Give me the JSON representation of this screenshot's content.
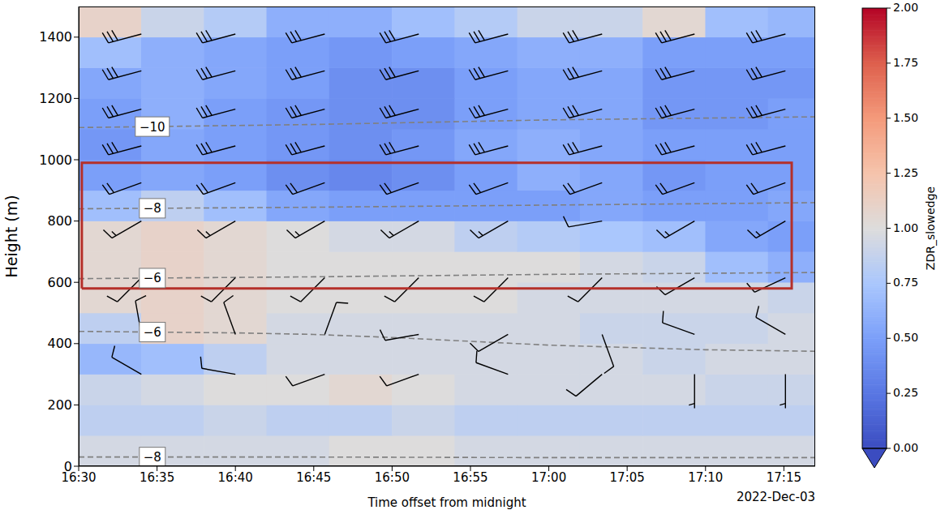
{
  "chart_data": {
    "type": "heatmap",
    "x_label": "Time offset from midnight",
    "y_label": "Height (m)",
    "annotation": "2022-Dec-03",
    "xlim": [
      990,
      1037
    ],
    "xticks": [
      {
        "value": 990,
        "label": "16:30"
      },
      {
        "value": 995,
        "label": "16:35"
      },
      {
        "value": 1000,
        "label": "16:40"
      },
      {
        "value": 1005,
        "label": "16:45"
      },
      {
        "value": 1010,
        "label": "16:50"
      },
      {
        "value": 1015,
        "label": "16:55"
      },
      {
        "value": 1020,
        "label": "17:00"
      },
      {
        "value": 1025,
        "label": "17:05"
      },
      {
        "value": 1030,
        "label": "17:10"
      },
      {
        "value": 1035,
        "label": "17:15"
      }
    ],
    "ylim": [
      0,
      1500
    ],
    "yticks": [
      0,
      200,
      400,
      600,
      800,
      1000,
      1200,
      1400
    ],
    "cells": {
      "x_edges": [
        990,
        994,
        998,
        1002,
        1006,
        1010,
        1014,
        1018,
        1022,
        1026,
        1030,
        1034,
        1037
      ],
      "y_edges": [
        0,
        100,
        200,
        300,
        400,
        500,
        600,
        700,
        800,
        900,
        1000,
        1100,
        1200,
        1300,
        1400,
        1500
      ],
      "values": [
        [
          0.95,
          0.95,
          0.95,
          0.95,
          1.0,
          1.0,
          0.95,
          0.95,
          0.95,
          0.95,
          0.95,
          0.95
        ],
        [
          0.85,
          0.85,
          0.9,
          0.85,
          0.85,
          0.9,
          0.85,
          0.85,
          0.85,
          0.85,
          0.85,
          0.85
        ],
        [
          0.9,
          0.95,
          1.0,
          1.0,
          1.05,
          1.0,
          0.95,
          0.95,
          0.95,
          0.95,
          0.9,
          0.9
        ],
        [
          0.65,
          0.7,
          0.85,
          0.95,
          0.95,
          0.95,
          0.95,
          0.95,
          0.95,
          0.9,
          0.95,
          0.95
        ],
        [
          0.85,
          1.1,
          1.05,
          0.95,
          0.95,
          0.95,
          0.95,
          0.95,
          0.9,
          0.9,
          0.9,
          0.95
        ],
        [
          1.05,
          1.1,
          1.05,
          1.0,
          1.0,
          1.0,
          1.0,
          0.95,
          0.95,
          0.95,
          0.95,
          0.9
        ],
        [
          1.05,
          1.1,
          1.05,
          1.0,
          1.0,
          1.0,
          1.0,
          1.0,
          0.95,
          0.9,
          0.7,
          0.6
        ],
        [
          1.05,
          1.1,
          1.05,
          1.0,
          0.95,
          0.95,
          0.85,
          0.8,
          0.75,
          0.7,
          0.55,
          0.5
        ],
        [
          0.7,
          0.85,
          0.7,
          0.55,
          0.5,
          0.5,
          0.5,
          0.5,
          0.55,
          0.5,
          0.5,
          0.55
        ],
        [
          0.5,
          0.55,
          0.5,
          0.4,
          0.35,
          0.4,
          0.5,
          0.6,
          0.55,
          0.45,
          0.5,
          0.5
        ],
        [
          0.45,
          0.55,
          0.5,
          0.45,
          0.4,
          0.45,
          0.55,
          0.6,
          0.55,
          0.5,
          0.5,
          0.5
        ],
        [
          0.5,
          0.6,
          0.5,
          0.45,
          0.4,
          0.4,
          0.5,
          0.55,
          0.55,
          0.45,
          0.45,
          0.5
        ],
        [
          0.55,
          0.6,
          0.55,
          0.5,
          0.4,
          0.4,
          0.5,
          0.55,
          0.55,
          0.45,
          0.45,
          0.45
        ],
        [
          0.7,
          0.6,
          0.55,
          0.5,
          0.45,
          0.5,
          0.55,
          0.6,
          0.6,
          0.5,
          0.5,
          0.5
        ],
        [
          1.1,
          0.9,
          0.8,
          0.6,
          0.6,
          0.7,
          0.8,
          0.9,
          0.9,
          1.05,
          0.7,
          0.65
        ]
      ]
    },
    "colorbar": {
      "label": "ZDR_slowedge",
      "range": [
        0,
        2
      ],
      "ticks": [
        {
          "value": 0,
          "label": "0.00"
        },
        {
          "value": 0.25,
          "label": "0.25"
        },
        {
          "value": 0.5,
          "label": "0.50"
        },
        {
          "value": 0.75,
          "label": "0.75"
        },
        {
          "value": 1,
          "label": "1.00"
        },
        {
          "value": 1.25,
          "label": "1.25"
        },
        {
          "value": 1.5,
          "label": "1.50"
        },
        {
          "value": 1.75,
          "label": "1.75"
        },
        {
          "value": 2,
          "label": "2.00"
        }
      ]
    },
    "contours": [
      {
        "label": "−10",
        "x": [
          990,
          1005,
          1020,
          1037
        ],
        "y": [
          1105,
          1115,
          1130,
          1140
        ]
      },
      {
        "label": "−8",
        "x": [
          990,
          1005,
          1020,
          1037
        ],
        "y": [
          840,
          845,
          852,
          860
        ]
      },
      {
        "label": "−6",
        "x": [
          990,
          1005,
          1020,
          1037
        ],
        "y": [
          612,
          618,
          626,
          632
        ]
      },
      {
        "label": "−6",
        "x": [
          990,
          1000,
          1005,
          1010,
          1020,
          1030,
          1037
        ],
        "y": [
          440,
          435,
          430,
          420,
          395,
          380,
          375
        ]
      },
      {
        "label": "−8",
        "x": [
          990,
          1005,
          1020,
          1037
        ],
        "y": [
          30,
          30,
          28,
          28
        ]
      }
    ],
    "wind_barbs": [
      {
        "x": 994.0,
        "y": 1410,
        "speed": 30,
        "direction": 255
      },
      {
        "x": 1000.0,
        "y": 1410,
        "speed": 30,
        "direction": 255
      },
      {
        "x": 1005.7,
        "y": 1410,
        "speed": 30,
        "direction": 255
      },
      {
        "x": 1011.7,
        "y": 1410,
        "speed": 30,
        "direction": 255
      },
      {
        "x": 1017.4,
        "y": 1410,
        "speed": 30,
        "direction": 255
      },
      {
        "x": 1023.4,
        "y": 1410,
        "speed": 30,
        "direction": 255
      },
      {
        "x": 1029.3,
        "y": 1410,
        "speed": 30,
        "direction": 255
      },
      {
        "x": 1035.1,
        "y": 1410,
        "speed": 30,
        "direction": 255
      },
      {
        "x": 994.0,
        "y": 1290,
        "speed": 30,
        "direction": 255
      },
      {
        "x": 1000.0,
        "y": 1290,
        "speed": 30,
        "direction": 255
      },
      {
        "x": 1005.7,
        "y": 1290,
        "speed": 30,
        "direction": 255
      },
      {
        "x": 1011.7,
        "y": 1290,
        "speed": 30,
        "direction": 255
      },
      {
        "x": 1017.4,
        "y": 1290,
        "speed": 30,
        "direction": 255
      },
      {
        "x": 1023.4,
        "y": 1290,
        "speed": 30,
        "direction": 255
      },
      {
        "x": 1029.3,
        "y": 1290,
        "speed": 30,
        "direction": 255
      },
      {
        "x": 1035.1,
        "y": 1290,
        "speed": 30,
        "direction": 255
      },
      {
        "x": 994.0,
        "y": 1165,
        "speed": 30,
        "direction": 255
      },
      {
        "x": 1000.0,
        "y": 1165,
        "speed": 30,
        "direction": 255
      },
      {
        "x": 1005.7,
        "y": 1165,
        "speed": 30,
        "direction": 255
      },
      {
        "x": 1011.7,
        "y": 1165,
        "speed": 30,
        "direction": 255
      },
      {
        "x": 1017.4,
        "y": 1165,
        "speed": 30,
        "direction": 255
      },
      {
        "x": 1023.4,
        "y": 1165,
        "speed": 30,
        "direction": 255
      },
      {
        "x": 1029.3,
        "y": 1165,
        "speed": 30,
        "direction": 255
      },
      {
        "x": 1035.1,
        "y": 1165,
        "speed": 30,
        "direction": 255
      },
      {
        "x": 994.0,
        "y": 1045,
        "speed": 30,
        "direction": 255
      },
      {
        "x": 1000.0,
        "y": 1045,
        "speed": 30,
        "direction": 255
      },
      {
        "x": 1005.7,
        "y": 1045,
        "speed": 30,
        "direction": 255
      },
      {
        "x": 1011.7,
        "y": 1045,
        "speed": 30,
        "direction": 255
      },
      {
        "x": 1017.4,
        "y": 1045,
        "speed": 30,
        "direction": 255
      },
      {
        "x": 1023.4,
        "y": 1045,
        "speed": 30,
        "direction": 255
      },
      {
        "x": 1029.3,
        "y": 1045,
        "speed": 30,
        "direction": 255
      },
      {
        "x": 1035.1,
        "y": 1045,
        "speed": 30,
        "direction": 255
      },
      {
        "x": 994.0,
        "y": 925,
        "speed": 20,
        "direction": 250
      },
      {
        "x": 1000.0,
        "y": 925,
        "speed": 20,
        "direction": 250
      },
      {
        "x": 1005.7,
        "y": 925,
        "speed": 20,
        "direction": 250
      },
      {
        "x": 1011.7,
        "y": 925,
        "speed": 20,
        "direction": 250
      },
      {
        "x": 1017.4,
        "y": 925,
        "speed": 20,
        "direction": 250
      },
      {
        "x": 1023.4,
        "y": 925,
        "speed": 20,
        "direction": 250
      },
      {
        "x": 1029.3,
        "y": 925,
        "speed": 20,
        "direction": 250
      },
      {
        "x": 1035.1,
        "y": 925,
        "speed": 20,
        "direction": 250
      },
      {
        "x": 994.0,
        "y": 800,
        "speed": 15,
        "direction": 240
      },
      {
        "x": 1000.0,
        "y": 800,
        "speed": 15,
        "direction": 240
      },
      {
        "x": 1005.7,
        "y": 800,
        "speed": 15,
        "direction": 240
      },
      {
        "x": 1011.7,
        "y": 800,
        "speed": 15,
        "direction": 240
      },
      {
        "x": 1017.4,
        "y": 800,
        "speed": 15,
        "direction": 240
      },
      {
        "x": 1023.4,
        "y": 800,
        "speed": 10,
        "direction": 260
      },
      {
        "x": 1029.3,
        "y": 800,
        "speed": 15,
        "direction": 240
      },
      {
        "x": 1035.1,
        "y": 800,
        "speed": 15,
        "direction": 240
      },
      {
        "x": 994.0,
        "y": 615,
        "speed": 10,
        "direction": 225
      },
      {
        "x": 1000.0,
        "y": 615,
        "speed": 10,
        "direction": 225
      },
      {
        "x": 1005.7,
        "y": 615,
        "speed": 10,
        "direction": 225
      },
      {
        "x": 1011.7,
        "y": 615,
        "speed": 10,
        "direction": 225
      },
      {
        "x": 1017.4,
        "y": 615,
        "speed": 10,
        "direction": 225
      },
      {
        "x": 1023.4,
        "y": 615,
        "speed": 10,
        "direction": 225
      },
      {
        "x": 1029.3,
        "y": 615,
        "speed": 10,
        "direction": 240
      },
      {
        "x": 1035.1,
        "y": 615,
        "speed": 10,
        "direction": 245
      },
      {
        "x": 994.0,
        "y": 430,
        "speed": 10,
        "direction": 350
      },
      {
        "x": 1000.0,
        "y": 430,
        "speed": 10,
        "direction": 340
      },
      {
        "x": 1005.7,
        "y": 430,
        "speed": 10,
        "direction": 20
      },
      {
        "x": 1011.7,
        "y": 430,
        "speed": 10,
        "direction": 260
      },
      {
        "x": 1017.4,
        "y": 430,
        "speed": 10,
        "direction": 240
      },
      {
        "x": 1023.4,
        "y": 430,
        "speed": 10,
        "direction": 160
      },
      {
        "x": 1029.3,
        "y": 430,
        "speed": 10,
        "direction": 290
      },
      {
        "x": 1035.1,
        "y": 430,
        "speed": 10,
        "direction": 300
      },
      {
        "x": 994.0,
        "y": 300,
        "speed": 10,
        "direction": 300
      },
      {
        "x": 1000.0,
        "y": 300,
        "speed": 10,
        "direction": 280
      },
      {
        "x": 1005.7,
        "y": 300,
        "speed": 10,
        "direction": 250
      },
      {
        "x": 1011.7,
        "y": 300,
        "speed": 10,
        "direction": 250
      },
      {
        "x": 1017.4,
        "y": 300,
        "speed": 10,
        "direction": 290
      },
      {
        "x": 1023.4,
        "y": 300,
        "speed": 10,
        "direction": 230
      },
      {
        "x": 1029.3,
        "y": 300,
        "speed": 5,
        "direction": 180
      },
      {
        "x": 1035.1,
        "y": 300,
        "speed": 5,
        "direction": 180
      }
    ],
    "highlight": {
      "x": [
        990.2,
        1035.5
      ],
      "y": [
        580,
        990
      ],
      "color": "#b5302a"
    }
  }
}
